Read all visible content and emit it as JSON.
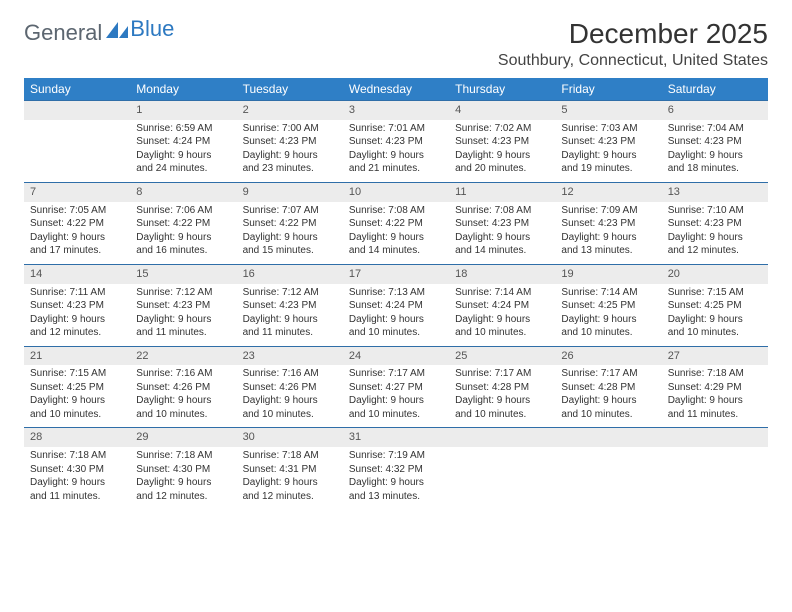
{
  "logo": {
    "text1": "General",
    "text2": "Blue"
  },
  "title": "December 2025",
  "location": "Southbury, Connecticut, United States",
  "colors": {
    "header_bg": "#2f7fc6",
    "header_text": "#ffffff",
    "daynum_bg": "#ececec",
    "daynum_border": "#2f6ea8",
    "text": "#333333",
    "logo_blue": "#2d79c1",
    "logo_gray": "#5c6670"
  },
  "weekdays": [
    "Sunday",
    "Monday",
    "Tuesday",
    "Wednesday",
    "Thursday",
    "Friday",
    "Saturday"
  ],
  "weeks": [
    {
      "nums": [
        "",
        "1",
        "2",
        "3",
        "4",
        "5",
        "6"
      ],
      "cells": [
        {
          "sunrise": "",
          "sunset": "",
          "daylight": ""
        },
        {
          "sunrise": "Sunrise: 6:59 AM",
          "sunset": "Sunset: 4:24 PM",
          "daylight": "Daylight: 9 hours and 24 minutes."
        },
        {
          "sunrise": "Sunrise: 7:00 AM",
          "sunset": "Sunset: 4:23 PM",
          "daylight": "Daylight: 9 hours and 23 minutes."
        },
        {
          "sunrise": "Sunrise: 7:01 AM",
          "sunset": "Sunset: 4:23 PM",
          "daylight": "Daylight: 9 hours and 21 minutes."
        },
        {
          "sunrise": "Sunrise: 7:02 AM",
          "sunset": "Sunset: 4:23 PM",
          "daylight": "Daylight: 9 hours and 20 minutes."
        },
        {
          "sunrise": "Sunrise: 7:03 AM",
          "sunset": "Sunset: 4:23 PM",
          "daylight": "Daylight: 9 hours and 19 minutes."
        },
        {
          "sunrise": "Sunrise: 7:04 AM",
          "sunset": "Sunset: 4:23 PM",
          "daylight": "Daylight: 9 hours and 18 minutes."
        }
      ]
    },
    {
      "nums": [
        "7",
        "8",
        "9",
        "10",
        "11",
        "12",
        "13"
      ],
      "cells": [
        {
          "sunrise": "Sunrise: 7:05 AM",
          "sunset": "Sunset: 4:22 PM",
          "daylight": "Daylight: 9 hours and 17 minutes."
        },
        {
          "sunrise": "Sunrise: 7:06 AM",
          "sunset": "Sunset: 4:22 PM",
          "daylight": "Daylight: 9 hours and 16 minutes."
        },
        {
          "sunrise": "Sunrise: 7:07 AM",
          "sunset": "Sunset: 4:22 PM",
          "daylight": "Daylight: 9 hours and 15 minutes."
        },
        {
          "sunrise": "Sunrise: 7:08 AM",
          "sunset": "Sunset: 4:22 PM",
          "daylight": "Daylight: 9 hours and 14 minutes."
        },
        {
          "sunrise": "Sunrise: 7:08 AM",
          "sunset": "Sunset: 4:23 PM",
          "daylight": "Daylight: 9 hours and 14 minutes."
        },
        {
          "sunrise": "Sunrise: 7:09 AM",
          "sunset": "Sunset: 4:23 PM",
          "daylight": "Daylight: 9 hours and 13 minutes."
        },
        {
          "sunrise": "Sunrise: 7:10 AM",
          "sunset": "Sunset: 4:23 PM",
          "daylight": "Daylight: 9 hours and 12 minutes."
        }
      ]
    },
    {
      "nums": [
        "14",
        "15",
        "16",
        "17",
        "18",
        "19",
        "20"
      ],
      "cells": [
        {
          "sunrise": "Sunrise: 7:11 AM",
          "sunset": "Sunset: 4:23 PM",
          "daylight": "Daylight: 9 hours and 12 minutes."
        },
        {
          "sunrise": "Sunrise: 7:12 AM",
          "sunset": "Sunset: 4:23 PM",
          "daylight": "Daylight: 9 hours and 11 minutes."
        },
        {
          "sunrise": "Sunrise: 7:12 AM",
          "sunset": "Sunset: 4:23 PM",
          "daylight": "Daylight: 9 hours and 11 minutes."
        },
        {
          "sunrise": "Sunrise: 7:13 AM",
          "sunset": "Sunset: 4:24 PM",
          "daylight": "Daylight: 9 hours and 10 minutes."
        },
        {
          "sunrise": "Sunrise: 7:14 AM",
          "sunset": "Sunset: 4:24 PM",
          "daylight": "Daylight: 9 hours and 10 minutes."
        },
        {
          "sunrise": "Sunrise: 7:14 AM",
          "sunset": "Sunset: 4:25 PM",
          "daylight": "Daylight: 9 hours and 10 minutes."
        },
        {
          "sunrise": "Sunrise: 7:15 AM",
          "sunset": "Sunset: 4:25 PM",
          "daylight": "Daylight: 9 hours and 10 minutes."
        }
      ]
    },
    {
      "nums": [
        "21",
        "22",
        "23",
        "24",
        "25",
        "26",
        "27"
      ],
      "cells": [
        {
          "sunrise": "Sunrise: 7:15 AM",
          "sunset": "Sunset: 4:25 PM",
          "daylight": "Daylight: 9 hours and 10 minutes."
        },
        {
          "sunrise": "Sunrise: 7:16 AM",
          "sunset": "Sunset: 4:26 PM",
          "daylight": "Daylight: 9 hours and 10 minutes."
        },
        {
          "sunrise": "Sunrise: 7:16 AM",
          "sunset": "Sunset: 4:26 PM",
          "daylight": "Daylight: 9 hours and 10 minutes."
        },
        {
          "sunrise": "Sunrise: 7:17 AM",
          "sunset": "Sunset: 4:27 PM",
          "daylight": "Daylight: 9 hours and 10 minutes."
        },
        {
          "sunrise": "Sunrise: 7:17 AM",
          "sunset": "Sunset: 4:28 PM",
          "daylight": "Daylight: 9 hours and 10 minutes."
        },
        {
          "sunrise": "Sunrise: 7:17 AM",
          "sunset": "Sunset: 4:28 PM",
          "daylight": "Daylight: 9 hours and 10 minutes."
        },
        {
          "sunrise": "Sunrise: 7:18 AM",
          "sunset": "Sunset: 4:29 PM",
          "daylight": "Daylight: 9 hours and 11 minutes."
        }
      ]
    },
    {
      "nums": [
        "28",
        "29",
        "30",
        "31",
        "",
        "",
        ""
      ],
      "cells": [
        {
          "sunrise": "Sunrise: 7:18 AM",
          "sunset": "Sunset: 4:30 PM",
          "daylight": "Daylight: 9 hours and 11 minutes."
        },
        {
          "sunrise": "Sunrise: 7:18 AM",
          "sunset": "Sunset: 4:30 PM",
          "daylight": "Daylight: 9 hours and 12 minutes."
        },
        {
          "sunrise": "Sunrise: 7:18 AM",
          "sunset": "Sunset: 4:31 PM",
          "daylight": "Daylight: 9 hours and 12 minutes."
        },
        {
          "sunrise": "Sunrise: 7:19 AM",
          "sunset": "Sunset: 4:32 PM",
          "daylight": "Daylight: 9 hours and 13 minutes."
        },
        {
          "sunrise": "",
          "sunset": "",
          "daylight": ""
        },
        {
          "sunrise": "",
          "sunset": "",
          "daylight": ""
        },
        {
          "sunrise": "",
          "sunset": "",
          "daylight": ""
        }
      ]
    }
  ]
}
